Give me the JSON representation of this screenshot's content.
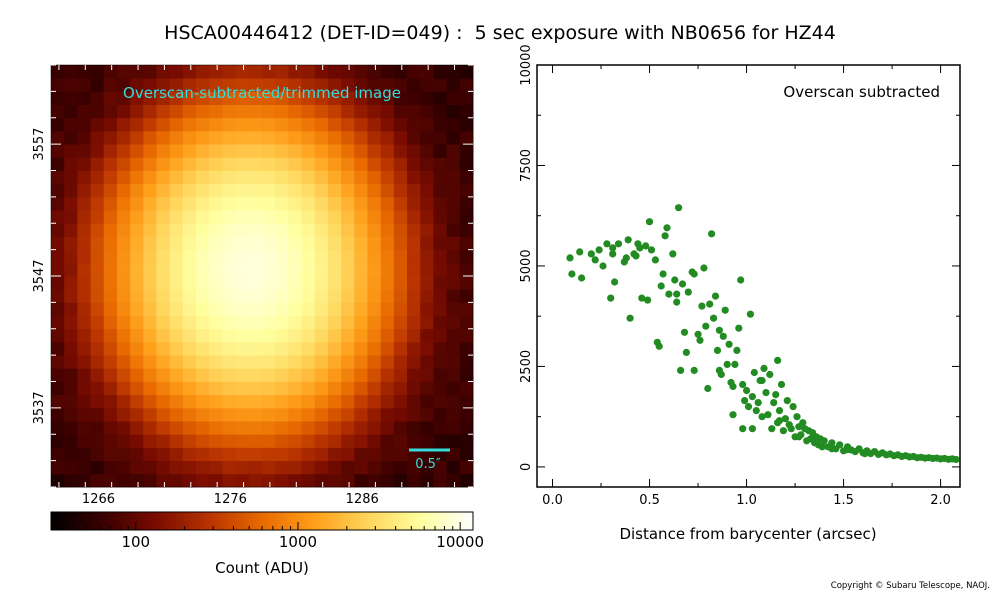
{
  "title": "HSCA00446412 (DET-ID=049) :  5 sec exposure with NB0656 for HZ44",
  "copyright": "Copyright © Subaru Telescope, NAOJ.",
  "colors": {
    "annotation": "#33dddd",
    "points": "#228b22",
    "colormap": [
      "#000000",
      "#3a0000",
      "#7a0c00",
      "#b83300",
      "#e86a00",
      "#ff9f1a",
      "#ffd45a",
      "#ffff9e",
      "#ffffff"
    ]
  },
  "chart_data": [
    {
      "type": "heatmap",
      "annotation": "Overscan-subtracted/trimmed image",
      "scale_bar_label": "0.5″",
      "x_ticks": [
        "1266",
        "1276",
        "1286"
      ],
      "y_ticks": [
        "3557",
        "3547",
        "3537"
      ],
      "xlim": [
        1262.4,
        1294.4
      ],
      "ylim": [
        3531,
        3563
      ],
      "source_center": [
        1277.5,
        3547.5
      ],
      "peak_count_adu": 9000,
      "background_count_adu": 60,
      "colorbar": {
        "label": "Count (ADU)",
        "ticks": [
          "100",
          "1000",
          "10000"
        ],
        "range": [
          30,
          12000
        ],
        "scale": "log"
      }
    },
    {
      "type": "scatter",
      "annotation": "Overscan subtracted",
      "xlabel": "Distance from barycenter (arcsec)",
      "ylabel": "",
      "x_ticks": [
        "0.0",
        "0.5",
        "1.0",
        "1.5",
        "2.0"
      ],
      "y_ticks": [
        "0",
        "2500",
        "5000",
        "7500",
        "10000"
      ],
      "xlim": [
        -0.08,
        2.1
      ],
      "ylim": [
        -500,
        10000
      ],
      "series": [
        {
          "name": "",
          "points": [
            [
              0.09,
              5200
            ],
            [
              0.1,
              4800
            ],
            [
              0.14,
              5350
            ],
            [
              0.15,
              4700
            ],
            [
              0.2,
              5300
            ],
            [
              0.22,
              5150
            ],
            [
              0.24,
              5400
            ],
            [
              0.26,
              5000
            ],
            [
              0.28,
              5550
            ],
            [
              0.3,
              4200
            ],
            [
              0.31,
              5450
            ],
            [
              0.32,
              4600
            ],
            [
              0.34,
              5550
            ],
            [
              0.37,
              5100
            ],
            [
              0.38,
              5200
            ],
            [
              0.39,
              5650
            ],
            [
              0.4,
              3700
            ],
            [
              0.42,
              5300
            ],
            [
              0.43,
              5250
            ],
            [
              0.45,
              5450
            ],
            [
              0.46,
              4200
            ],
            [
              0.48,
              5500
            ],
            [
              0.49,
              4150
            ],
            [
              0.5,
              6100
            ],
            [
              0.51,
              5400
            ],
            [
              0.53,
              5150
            ],
            [
              0.54,
              3100
            ],
            [
              0.55,
              3000
            ],
            [
              0.56,
              4500
            ],
            [
              0.57,
              4800
            ],
            [
              0.58,
              5750
            ],
            [
              0.59,
              5950
            ],
            [
              0.6,
              4300
            ],
            [
              0.62,
              5300
            ],
            [
              0.63,
              4650
            ],
            [
              0.64,
              4100
            ],
            [
              0.65,
              6450
            ],
            [
              0.66,
              2400
            ],
            [
              0.67,
              4550
            ],
            [
              0.68,
              3350
            ],
            [
              0.69,
              2850
            ],
            [
              0.7,
              4350
            ],
            [
              0.72,
              4850
            ],
            [
              0.73,
              2400
            ],
            [
              0.75,
              3300
            ],
            [
              0.76,
              3150
            ],
            [
              0.78,
              4950
            ],
            [
              0.79,
              3500
            ],
            [
              0.8,
              1950
            ],
            [
              0.81,
              4050
            ],
            [
              0.82,
              5800
            ],
            [
              0.83,
              3700
            ],
            [
              0.84,
              4250
            ],
            [
              0.85,
              2900
            ],
            [
              0.86,
              3400
            ],
            [
              0.87,
              2300
            ],
            [
              0.88,
              3250
            ],
            [
              0.89,
              3900
            ],
            [
              0.9,
              2550
            ],
            [
              0.91,
              3050
            ],
            [
              0.92,
              2100
            ],
            [
              0.93,
              1300
            ],
            [
              0.94,
              2550
            ],
            [
              0.95,
              2900
            ],
            [
              0.96,
              3450
            ],
            [
              0.97,
              4650
            ],
            [
              0.98,
              2050
            ],
            [
              0.99,
              1650
            ],
            [
              1.0,
              1900
            ],
            [
              1.01,
              1500
            ],
            [
              1.02,
              3800
            ],
            [
              1.03,
              1750
            ],
            [
              1.04,
              2350
            ],
            [
              1.05,
              1400
            ],
            [
              1.06,
              1600
            ],
            [
              1.07,
              2150
            ],
            [
              1.08,
              1250
            ],
            [
              1.09,
              2450
            ],
            [
              1.1,
              1850
            ],
            [
              1.11,
              1300
            ],
            [
              1.12,
              2300
            ],
            [
              1.13,
              950
            ],
            [
              1.14,
              1600
            ],
            [
              1.15,
              1800
            ],
            [
              1.16,
              1100
            ],
            [
              1.17,
              1400
            ],
            [
              1.18,
              2050
            ],
            [
              1.19,
              900
            ],
            [
              1.2,
              1200
            ],
            [
              1.21,
              1650
            ],
            [
              1.22,
              1050
            ],
            [
              1.23,
              950
            ],
            [
              1.24,
              1500
            ],
            [
              1.25,
              750
            ],
            [
              1.26,
              1250
            ],
            [
              1.27,
              1000
            ],
            [
              1.28,
              800
            ],
            [
              1.29,
              1100
            ],
            [
              1.3,
              950
            ],
            [
              1.31,
              650
            ],
            [
              1.32,
              900
            ],
            [
              1.33,
              700
            ],
            [
              1.34,
              850
            ],
            [
              1.35,
              600
            ],
            [
              1.36,
              750
            ],
            [
              1.37,
              550
            ],
            [
              1.38,
              700
            ],
            [
              1.39,
              500
            ],
            [
              1.4,
              650
            ],
            [
              1.42,
              500
            ],
            [
              1.44,
              600
            ],
            [
              1.46,
              450
            ],
            [
              1.48,
              550
            ],
            [
              1.5,
              400
            ],
            [
              1.52,
              500
            ],
            [
              1.54,
              420
            ],
            [
              1.56,
              380
            ],
            [
              1.58,
              450
            ],
            [
              1.6,
              350
            ],
            [
              1.62,
              400
            ],
            [
              1.64,
              330
            ],
            [
              1.66,
              380
            ],
            [
              1.68,
              310
            ],
            [
              1.7,
              350
            ],
            [
              1.72,
              300
            ],
            [
              1.74,
              320
            ],
            [
              1.76,
              280
            ],
            [
              1.78,
              300
            ],
            [
              1.8,
              260
            ],
            [
              1.82,
              280
            ],
            [
              1.84,
              250
            ],
            [
              1.86,
              260
            ],
            [
              1.88,
              230
            ],
            [
              1.9,
              240
            ],
            [
              1.92,
              220
            ],
            [
              1.94,
              230
            ],
            [
              1.96,
              210
            ],
            [
              1.98,
              220
            ],
            [
              2.0,
              200
            ],
            [
              2.02,
              210
            ],
            [
              2.04,
              190
            ],
            [
              2.06,
              200
            ],
            [
              2.08,
              185
            ],
            [
              0.77,
              4000
            ],
            [
              1.03,
              950
            ],
            [
              1.08,
              2150
            ],
            [
              1.17,
              1150
            ],
            [
              0.86,
              2400
            ],
            [
              0.93,
              2000
            ],
            [
              0.98,
              950
            ],
            [
              1.16,
              2650
            ],
            [
              0.73,
              4800
            ],
            [
              0.64,
              4300
            ],
            [
              0.44,
              5550
            ],
            [
              0.31,
              5300
            ],
            [
              1.27,
              750
            ],
            [
              1.35,
              750
            ],
            [
              1.44,
              450
            ],
            [
              1.52,
              430
            ],
            [
              1.61,
              330
            ]
          ]
        }
      ]
    }
  ]
}
